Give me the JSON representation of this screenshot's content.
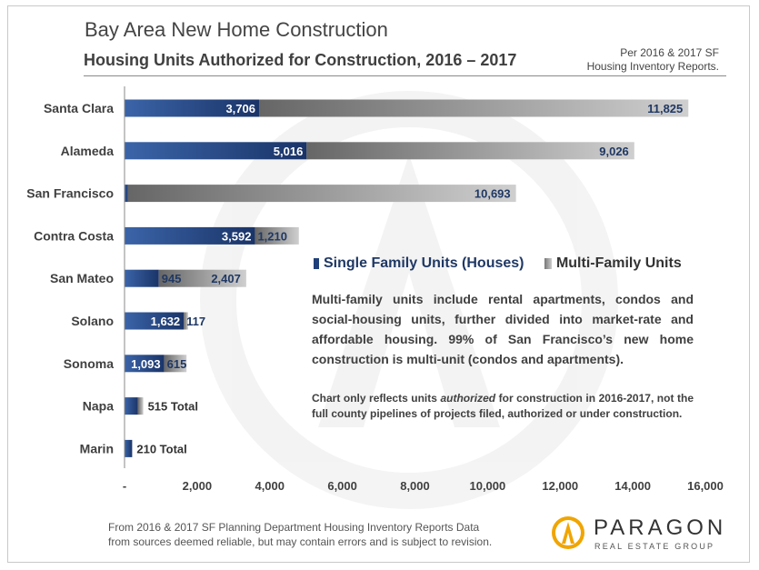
{
  "header": {
    "title": "Bay Area New Home Construction",
    "subtitle": "Housing Units Authorized for Construction, 2016 – 2017",
    "source_note": "Per 2016 & 2017 SF\nHousing Inventory Reports."
  },
  "legend": {
    "single": "Single Family Units (Houses)",
    "multi": "Multi-Family Units"
  },
  "text": {
    "description": "Multi-family units include rental apartments, condos and social-housing units, further divided into market-rate and affordable housing. 99% of San Francisco’s new home construction is multi-unit (condos and apartments).",
    "note_before": "Chart only reflects units ",
    "note_em": "authorized",
    "note_after": " for construction in 2016-2017, not the full county pipelines of projects filed, authorized or under construction.",
    "footer": "From 2016 & 2017 SF Planning Department Housing Inventory Reports Data\nfrom sources deemed reliable, but may contain errors and is subject to revision."
  },
  "logo": {
    "name": "PARAGON",
    "tagline": "REAL ESTATE GROUP",
    "icon": "paragon-logo-icon"
  },
  "colors": {
    "single": "#1f3f7a",
    "multi_dark": "#6e6e6e",
    "multi_light": "#c8c8c8",
    "text": "#404040"
  },
  "chart_data": {
    "type": "bar",
    "orientation": "horizontal",
    "stacked": true,
    "categories": [
      "Santa Clara",
      "Alameda",
      "San Francisco",
      "Contra Costa",
      "San Mateo",
      "Solano",
      "Sonoma",
      "Napa",
      "Marin"
    ],
    "series": [
      {
        "name": "Single Family Units (Houses)",
        "values": [
          3706,
          5016,
          90,
          3592,
          945,
          1632,
          1093,
          370,
          210
        ],
        "labels": [
          "3,706",
          "5,016",
          "",
          "3,592",
          "945",
          "1,632",
          "1,093",
          "",
          ""
        ]
      },
      {
        "name": "Multi-Family Units",
        "values": [
          11825,
          9026,
          10693,
          1210,
          2407,
          117,
          615,
          145,
          0
        ],
        "labels": [
          "11,825",
          "9,026",
          "10,693",
          "1,210",
          "2,407",
          "117",
          "615",
          "",
          ""
        ]
      }
    ],
    "total_labels": [
      "",
      "",
      "",
      "",
      "",
      "",
      "",
      "515 Total",
      "210 Total"
    ],
    "x_ticks": [
      0,
      2000,
      4000,
      6000,
      8000,
      10000,
      12000,
      14000,
      16000
    ],
    "x_tick_labels": [
      "-",
      "2,000",
      "4,000",
      "6,000",
      "8,000",
      "10,000",
      "12,000",
      "14,000",
      "16,000"
    ],
    "xlim": [
      0,
      16000
    ],
    "grid": false,
    "legend_position": "center-right"
  }
}
